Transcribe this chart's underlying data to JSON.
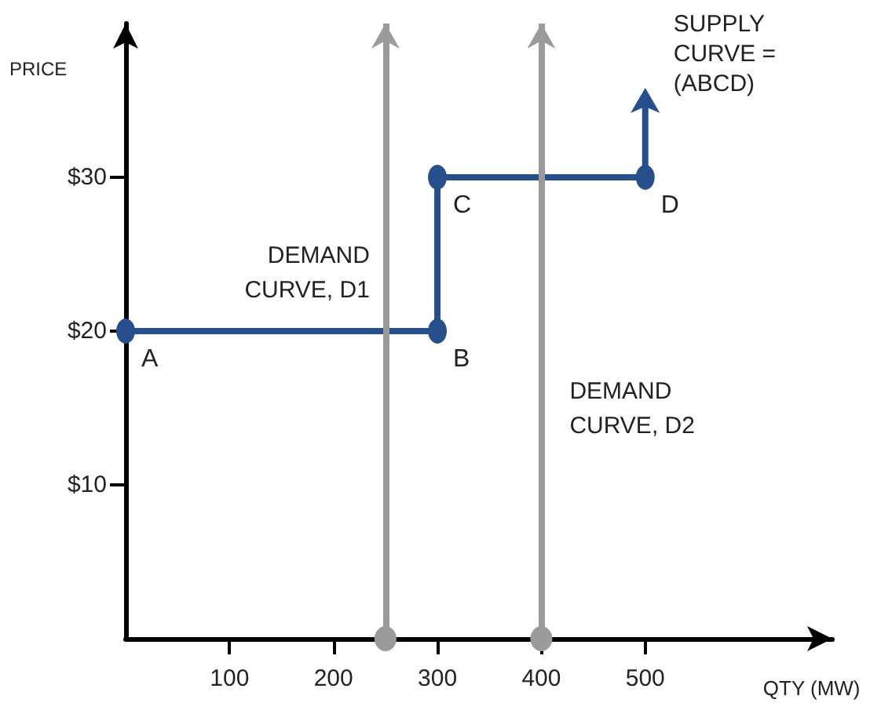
{
  "chart_data": {
    "type": "line",
    "xlabel": "QTY (MW)",
    "ylabel": "PRICE",
    "xlim": [
      0,
      680
    ],
    "xticks": [
      100,
      200,
      300,
      400,
      500
    ],
    "ylim": [
      0,
      40
    ],
    "yticks": [
      {
        "value": 10,
        "label": "$10"
      },
      {
        "value": 20,
        "label": "$20"
      },
      {
        "value": 30,
        "label": "$30"
      }
    ],
    "series": [
      {
        "name": "SUPPLY CURVE = (ABCD)",
        "color": "#264f8c",
        "x": [
          0,
          300,
          300,
          500,
          500
        ],
        "values": [
          20,
          20,
          30,
          30,
          35
        ]
      }
    ],
    "ref_lines": [
      {
        "axis": "x",
        "value": 250,
        "label": "DEMAND CURVE, D1",
        "color": "#9b9b9b"
      },
      {
        "axis": "x",
        "value": 400,
        "label": "DEMAND CURVE, D2",
        "color": "#9b9b9b"
      }
    ],
    "annotations": [
      {
        "text": "A",
        "x": 0,
        "y": 20
      },
      {
        "text": "B",
        "x": 300,
        "y": 20
      },
      {
        "text": "C",
        "x": 300,
        "y": 30
      },
      {
        "text": "D",
        "x": 500,
        "y": 30
      }
    ],
    "marker": "circle",
    "grid": false,
    "legend": false
  }
}
